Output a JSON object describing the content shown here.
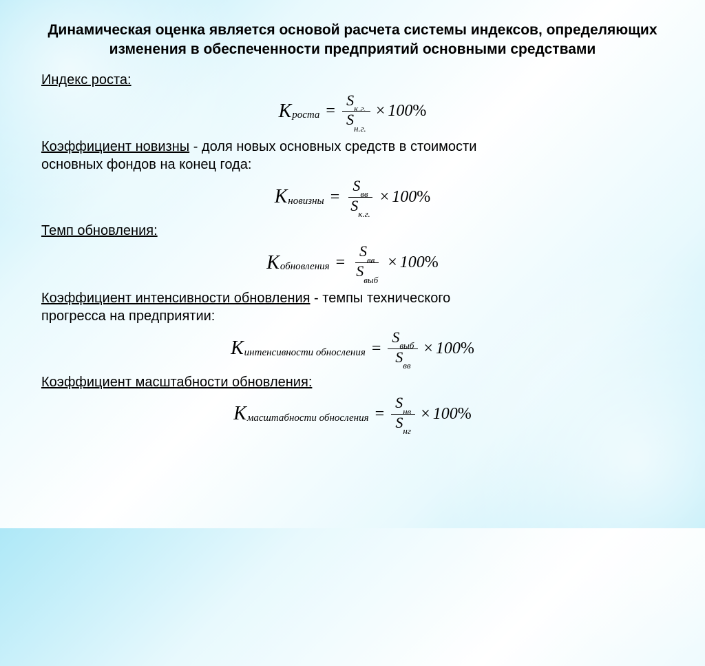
{
  "title": "Динамическая оценка является основой расчета системы индексов, определяющих изменения в обеспеченности предприятий основными средствами",
  "sections": [
    {
      "label": "Индекс роста:",
      "desc": "",
      "desc2": "",
      "formula": {
        "ksub": "роста",
        "num_sub": "к.г.",
        "den_sub": "н.г."
      }
    },
    {
      "label": "Коэффициент новизны",
      "desc": "  - доля новых основных средств в стоимости",
      "desc2": "основных фондов на конец года:",
      "formula": {
        "ksub": "новизны",
        "num_sub": "вв",
        "den_sub": "к.г."
      }
    },
    {
      "label": "Темп обновления:",
      "desc": "",
      "desc2": "",
      "formula": {
        "ksub": "обновления",
        "num_sub": "вв",
        "den_sub": "выб"
      }
    },
    {
      "label": "Коэффициент интенсивности обновления",
      "desc": " - темпы технического",
      "desc2": "прогресса на предприятии:",
      "formula": {
        "ksub": "интенсивности обносления",
        "num_sub": "выб",
        "den_sub": "вв"
      }
    },
    {
      "label": "Коэффициент масштабности обновления:",
      "desc": "",
      "desc2": "",
      "formula": {
        "ksub": "масштабности обносления",
        "num_sub": "нв",
        "den_sub": "нг"
      }
    }
  ],
  "symbols": {
    "K": "К",
    "S": "S",
    "eq": "=",
    "mult": "×",
    "hundred": "100",
    "pct": "%"
  },
  "style": {
    "text_color": "#000000",
    "title_fontsize": 21,
    "label_fontsize": 20,
    "formula_fontsize": 24,
    "bg_gradient": [
      "#aee8f7",
      "#e8f9fd",
      "#ffffff",
      "#e8f9fd",
      "#aee8f7"
    ]
  }
}
